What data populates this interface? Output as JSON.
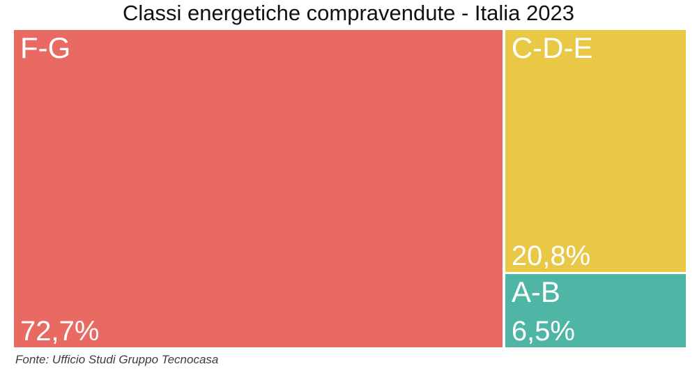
{
  "chart_data": {
    "type": "treemap",
    "title": "Classi energetiche compravendute - Italia 2023",
    "categories": [
      "F-G",
      "C-D-E",
      "A-B"
    ],
    "values": [
      72.7,
      20.8,
      6.5
    ],
    "value_labels": [
      "72,7%",
      "20,8%",
      "6,5%"
    ],
    "colors": [
      "#E96A62",
      "#E8C845",
      "#4FB6A6"
    ],
    "label_color": "#FFFFFF",
    "background": "#FFFFFF",
    "legend": "none",
    "layout_hint": "F-G occupies full-height left block; C-D-E top-right; A-B bottom-right; class name top-left of tile, percentage bottom-left",
    "source": "Fonte: Ufficio Studi Gruppo Tecnocasa"
  }
}
